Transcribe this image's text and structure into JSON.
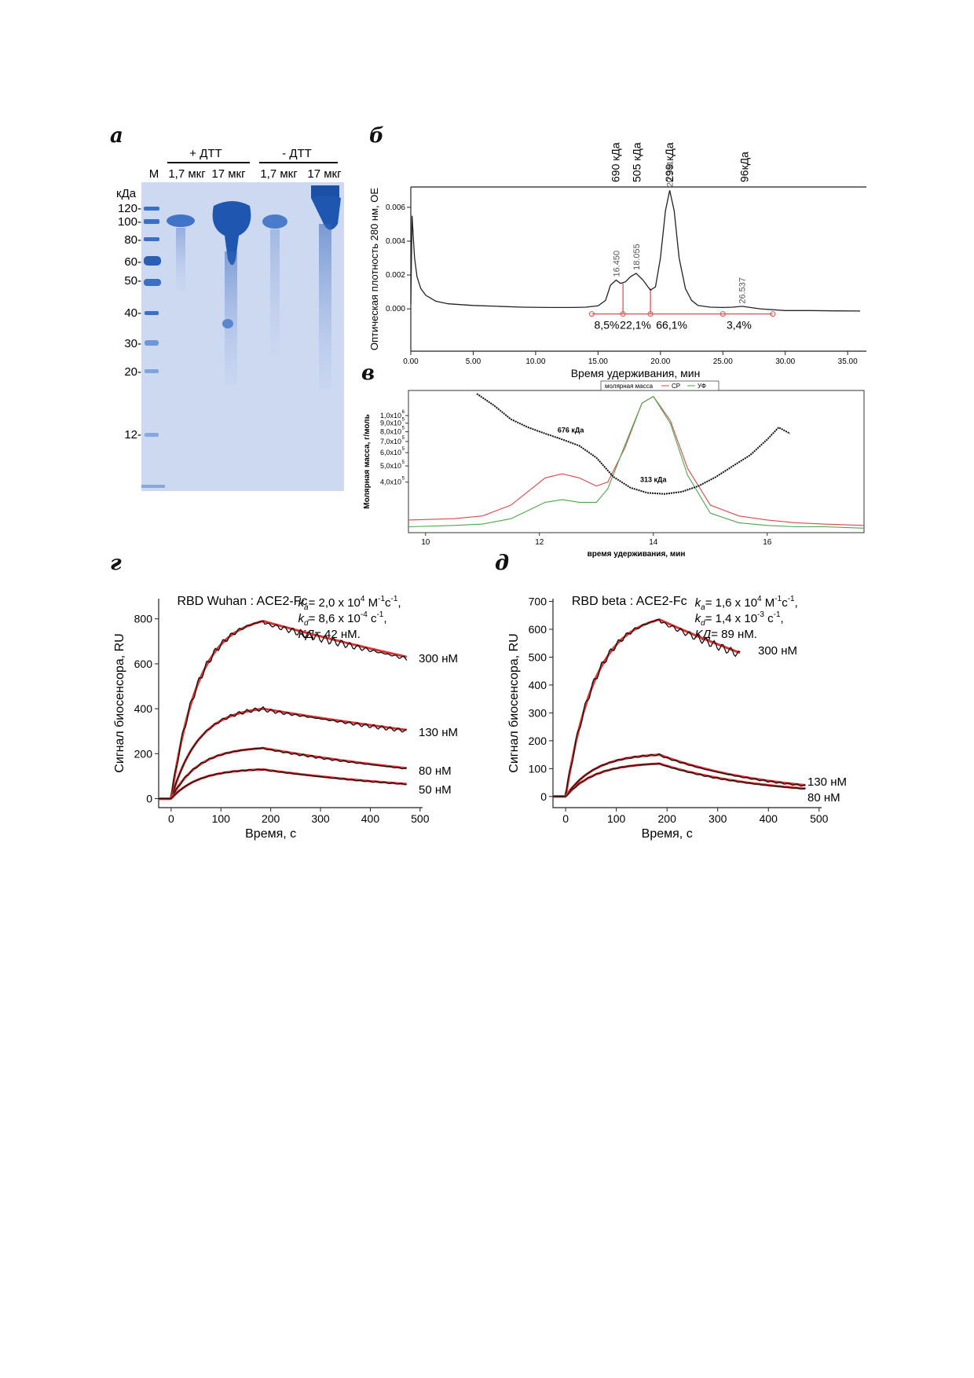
{
  "panels": {
    "a": "а",
    "b": "б",
    "v": "в",
    "g": "г",
    "d": "д"
  },
  "gel": {
    "group_plus": "+ ДТТ",
    "group_minus": "- ДТТ",
    "lane_m": "М",
    "lane_labels": [
      "1,7 мкг",
      "17 мкг",
      "1,7 мкг",
      "17 мкг"
    ],
    "unit": "кДа",
    "markers": [
      "120-",
      "100-",
      "80-",
      "60-",
      "50-",
      "40-",
      "30-",
      "20-",
      "12-"
    ],
    "gel_color": "#cdd8f1",
    "band_color": "#2f63b8"
  },
  "chart_data": [
    {
      "type": "line",
      "panel": "б",
      "xlabel": "Время удерживания, мин",
      "ylabel": "Оптическая плотность 280 нм, ОЕ",
      "xlim": [
        0,
        36.5
      ],
      "ylim": [
        -0.0025,
        0.0072
      ],
      "xticks": [
        "0.00",
        "5.00",
        "10.00",
        "15.00",
        "20.00",
        "25.00",
        "30.00",
        "35.00"
      ],
      "yticks": [
        "0.000",
        "0.002",
        "0.004",
        "0.006"
      ],
      "mw_labels": [
        "690 кДа",
        "505 кДа",
        "299 кДа",
        "96кДа"
      ],
      "mw_positions": [
        16.4,
        18.1,
        20.7,
        26.7
      ],
      "peak_labels": [
        "16.450",
        "18.055",
        "20.741",
        "26.537"
      ],
      "peak_positions": [
        16.45,
        18.055,
        20.741,
        26.537
      ],
      "percent_labels": [
        "8,5%",
        "22,1%",
        "66,1%",
        "3,4%"
      ],
      "percent_positions": [
        15.7,
        18.0,
        20.9,
        26.3
      ],
      "trace": {
        "x": [
          0,
          0.1,
          0.2,
          0.3,
          0.5,
          0.8,
          1.2,
          2,
          3,
          5,
          7,
          9,
          11,
          13,
          14,
          15,
          15.6,
          16.0,
          16.45,
          16.8,
          17.2,
          17.6,
          18.055,
          18.6,
          19.2,
          19.6,
          20.0,
          20.4,
          20.741,
          21.1,
          21.5,
          22.0,
          22.5,
          23,
          24,
          25,
          25.8,
          26.537,
          27.2,
          28,
          30,
          32,
          34,
          36
        ],
        "y": [
          0.0003,
          0.0055,
          0.0042,
          0.003,
          0.0019,
          0.0012,
          0.0008,
          0.00045,
          0.0003,
          0.0002,
          0.00015,
          0.0001,
          8e-05,
          8e-05,
          0.0001,
          0.00018,
          0.0005,
          0.0014,
          0.0017,
          0.0015,
          0.0016,
          0.0019,
          0.0021,
          0.0017,
          0.0011,
          0.0013,
          0.003,
          0.0058,
          0.007,
          0.0058,
          0.003,
          0.0012,
          0.0005,
          0.0002,
          0.0001,
          8e-05,
          0.0001,
          0.00015,
          8e-05,
          0.0,
          -0.0001,
          -0.0001,
          -0.00012,
          -0.00013
        ]
      },
      "color_trace": "#222222",
      "color_integration": "#e05050"
    },
    {
      "type": "line",
      "panel": "в",
      "xlabel": "время удерживания, мин",
      "ylabel": "Молярная масса, г/моль",
      "xlim": [
        9.7,
        17.7
      ],
      "xticks": [
        "10",
        "12",
        "14",
        "16"
      ],
      "ylim_log": [
        5.3,
        6.15
      ],
      "ytick_labels": [
        "1,0x10",
        "9,0x10",
        "8,0x10",
        "7,0x10",
        "6,0x10",
        "5,0x10",
        "4,0x10"
      ],
      "ytick_exps": [
        "6",
        "5",
        "5",
        "5",
        "5",
        "5",
        "5"
      ],
      "ytick_values": [
        1000000,
        900000,
        800000,
        700000,
        600000,
        500000,
        400000
      ],
      "legend": [
        "молярная масса",
        "СР",
        "УФ"
      ],
      "annotations": [
        "676 кДа",
        "313 кДа"
      ],
      "annotation_positions": [
        12.55,
        14.0
      ],
      "series": [
        {
          "name": "СР",
          "color": "#d94a4a",
          "x": [
            9.7,
            10.5,
            11.0,
            11.5,
            11.8,
            12.1,
            12.4,
            12.7,
            13.0,
            13.2,
            13.5,
            13.8,
            14.0,
            14.3,
            14.6,
            15.0,
            15.5,
            16,
            16.5,
            17,
            17.7
          ],
          "y": [
            0.07,
            0.08,
            0.1,
            0.18,
            0.28,
            0.38,
            0.41,
            0.38,
            0.32,
            0.35,
            0.6,
            0.93,
            0.98,
            0.8,
            0.45,
            0.18,
            0.1,
            0.07,
            0.05,
            0.04,
            0.03
          ]
        },
        {
          "name": "УФ",
          "color": "#4aa84a",
          "x": [
            9.7,
            10.5,
            11.0,
            11.5,
            11.8,
            12.1,
            12.4,
            12.7,
            13.0,
            13.2,
            13.5,
            13.8,
            14.0,
            14.3,
            14.6,
            15.0,
            15.5,
            16,
            16.5,
            17,
            17.7
          ],
          "y": [
            0.02,
            0.03,
            0.04,
            0.08,
            0.14,
            0.2,
            0.22,
            0.2,
            0.2,
            0.3,
            0.62,
            0.93,
            0.98,
            0.78,
            0.4,
            0.12,
            0.05,
            0.03,
            0.02,
            0.02,
            0.01
          ]
        },
        {
          "name": "молярная масса",
          "color": "#111111",
          "x": [
            10.9,
            11.2,
            11.5,
            11.8,
            12.1,
            12.4,
            12.7,
            13.0,
            13.3,
            13.6,
            13.9,
            14.2,
            14.5,
            14.8,
            15.1,
            15.4,
            15.7,
            16.0,
            16.2,
            16.4
          ],
          "y": [
            1350000,
            1150000,
            950000,
            850000,
            780000,
            720000,
            660000,
            560000,
            430000,
            370000,
            345000,
            340000,
            350000,
            380000,
            430000,
            500000,
            580000,
            720000,
            850000,
            780000
          ]
        }
      ]
    },
    {
      "type": "line",
      "panel": "г",
      "title": "RBD Wuhan : ACE2-Fc",
      "kinetics": [
        "= 2,0 x 10",
        "4",
        " M",
        "-1",
        "c",
        "-1",
        ",",
        "= 8,6 x 10",
        "-4",
        " c",
        "-1",
        ",",
        "= 42 нМ."
      ],
      "xlabel": "Время, с",
      "ylabel": "Сигнал биосенсора, RU",
      "xlim": [
        -25,
        505
      ],
      "ylim": [
        -40,
        890
      ],
      "xticks": [
        "0",
        "100",
        "200",
        "300",
        "400",
        "500"
      ],
      "yticks": [
        "0",
        "200",
        "400",
        "600",
        "800"
      ],
      "series": [
        {
          "name": "300 нМ",
          "peak": 790,
          "end": 630
        },
        {
          "name": "130 нМ",
          "peak": 400,
          "end": 305
        },
        {
          "name": "80 нМ",
          "peak": 225,
          "end": 135
        },
        {
          "name": "50 нМ",
          "peak": 130,
          "end": 65
        }
      ],
      "t_end": 475,
      "color_data": "#111111",
      "color_fit": "#e03131"
    },
    {
      "type": "line",
      "panel": "д",
      "title": "RBD beta : ACE2-Fc",
      "kinetics": [
        "= 1,6 x 10",
        "4",
        " M",
        "-1",
        "c",
        "-1",
        ",",
        "= 1,4 x 10",
        "-3",
        " c",
        "-1",
        ",",
        "= 89 нМ."
      ],
      "xlabel": "Время, с",
      "ylabel": "Сигнал биосенсора, RU",
      "xlim": [
        -25,
        505
      ],
      "ylim": [
        -40,
        710
      ],
      "xticks": [
        "0",
        "100",
        "200",
        "300",
        "400",
        "500"
      ],
      "yticks": [
        "0",
        "100",
        "200",
        "300",
        "400",
        "500",
        "600",
        "700"
      ],
      "series": [
        {
          "name": "300 нМ",
          "peak": 635,
          "end": 515,
          "t_end": 345
        },
        {
          "name": "130 нМ",
          "peak": 150,
          "end": 40,
          "t_end": 475
        },
        {
          "name": "80 нМ",
          "peak": 118,
          "end": 28,
          "t_end": 475
        }
      ],
      "color_data": "#111111",
      "color_fit": "#e03131"
    }
  ]
}
